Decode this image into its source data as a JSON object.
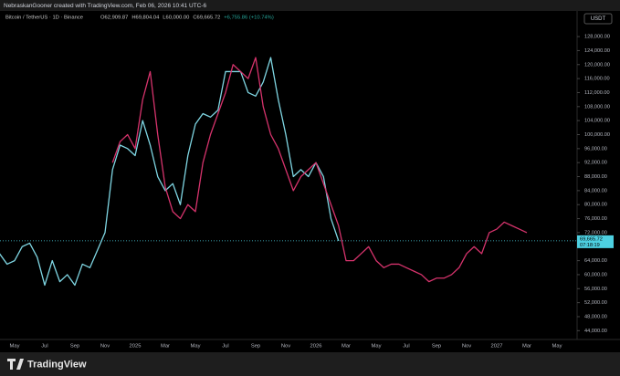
{
  "header": {
    "credit": "NebraskanGooner created with TradingView.com, Feb 06, 2026 10:41 UTC-6"
  },
  "chart_data": {
    "type": "line",
    "symbol": "Bitcoin / TetherUS · 1D · Binance",
    "ohlc": [
      "O62,909.87",
      "H69,804.04",
      "L60,000.00",
      "C69,665.72",
      "+6,755.86 (+10.74%)"
    ],
    "currency": "USDT",
    "categories": [
      null,
      null,
      "May",
      null,
      null,
      null,
      "Jul",
      null,
      null,
      null,
      "Sep",
      null,
      null,
      null,
      "Nov",
      null,
      null,
      null,
      "2025",
      null,
      null,
      null,
      "Mar",
      null,
      null,
      null,
      "May",
      null,
      null,
      null,
      "Jul",
      null,
      null,
      null,
      "Sep",
      null,
      null,
      null,
      "Nov",
      null,
      null,
      null,
      "2026",
      null,
      null,
      null,
      "Mar",
      null,
      null,
      null,
      "May",
      null,
      null,
      null,
      "Jul",
      null,
      null,
      null,
      "Sep",
      null,
      null,
      null,
      "Nov",
      null,
      null,
      null,
      "2027",
      null,
      null,
      null,
      "Mar",
      null,
      null,
      null,
      "May",
      null,
      null,
      null
    ],
    "series": [
      {
        "color": "#7fd6e3",
        "values": [
          66000,
          63000,
          64000,
          68000,
          69000,
          65000,
          57000,
          64000,
          58000,
          60000,
          57000,
          63000,
          62000,
          67000,
          72000,
          90000,
          97000,
          96000,
          94000,
          104000,
          97000,
          88000,
          84000,
          86000,
          80000,
          94000,
          103000,
          106000,
          105000,
          107000,
          118000,
          118000,
          118000,
          112000,
          111000,
          115000,
          122000,
          110000,
          100000,
          88000,
          90000,
          88000,
          92000,
          88000,
          76000,
          69665.72,
          null,
          null,
          null,
          null,
          null,
          null,
          null,
          null,
          null,
          null,
          null,
          null,
          null,
          null,
          null,
          null,
          null,
          null,
          null,
          null,
          null,
          null,
          null,
          null,
          null,
          null,
          null,
          null,
          null,
          null,
          null,
          null
        ]
      },
      {
        "color": "#d6336c",
        "values": [
          null,
          null,
          null,
          null,
          null,
          null,
          null,
          null,
          null,
          null,
          null,
          null,
          null,
          null,
          null,
          92000,
          98000,
          100000,
          96000,
          110000,
          118000,
          100000,
          85000,
          78000,
          76000,
          80000,
          78000,
          92000,
          100000,
          106000,
          112000,
          120000,
          118000,
          116000,
          122000,
          108000,
          100000,
          96000,
          90000,
          84000,
          88000,
          90000,
          92000,
          86000,
          80000,
          74000,
          64000,
          64000,
          66000,
          68000,
          64000,
          62000,
          63000,
          63000,
          62000,
          61000,
          60000,
          58000,
          59000,
          59000,
          60000,
          62000,
          66000,
          68000,
          66000,
          72000,
          73000,
          75000,
          74000,
          73000,
          72000,
          null,
          null,
          null,
          null,
          null,
          null,
          null
        ]
      }
    ],
    "ylim": [
      42000,
      134800
    ],
    "yticks": [
      {
        "value": 44000,
        "label": "44,000.00"
      },
      {
        "value": 48000,
        "label": "48,000.00"
      },
      {
        "value": 52000,
        "label": "52,000.00"
      },
      {
        "value": 56000,
        "label": "56,000.00"
      },
      {
        "value": 60000,
        "label": "60,000.00"
      },
      {
        "value": 64000,
        "label": "64,000.00"
      },
      {
        "value": 72000,
        "label": "72,000.00"
      },
      {
        "value": 76000,
        "label": "76,000.00"
      },
      {
        "value": 80000,
        "label": "80,000.00"
      },
      {
        "value": 84000,
        "label": "84,000.00"
      },
      {
        "value": 88000,
        "label": "88,000.00"
      },
      {
        "value": 92000,
        "label": "92,000.00"
      },
      {
        "value": 96000,
        "label": "96,000.00"
      },
      {
        "value": 100000,
        "label": "100,000.00"
      },
      {
        "value": 104000,
        "label": "104,000.00"
      },
      {
        "value": 108000,
        "label": "108,000.00"
      },
      {
        "value": 112000,
        "label": "112,000.00"
      },
      {
        "value": 116000,
        "label": "116,000.00"
      },
      {
        "value": 120000,
        "label": "120,000.00"
      },
      {
        "value": 124000,
        "label": "124,000.00"
      },
      {
        "value": 128000,
        "label": "128,000.00"
      }
    ],
    "last_price": {
      "value": 69665.72,
      "label": "69,665.72"
    },
    "countdown": "07:18:19",
    "brand": "TradingView"
  }
}
